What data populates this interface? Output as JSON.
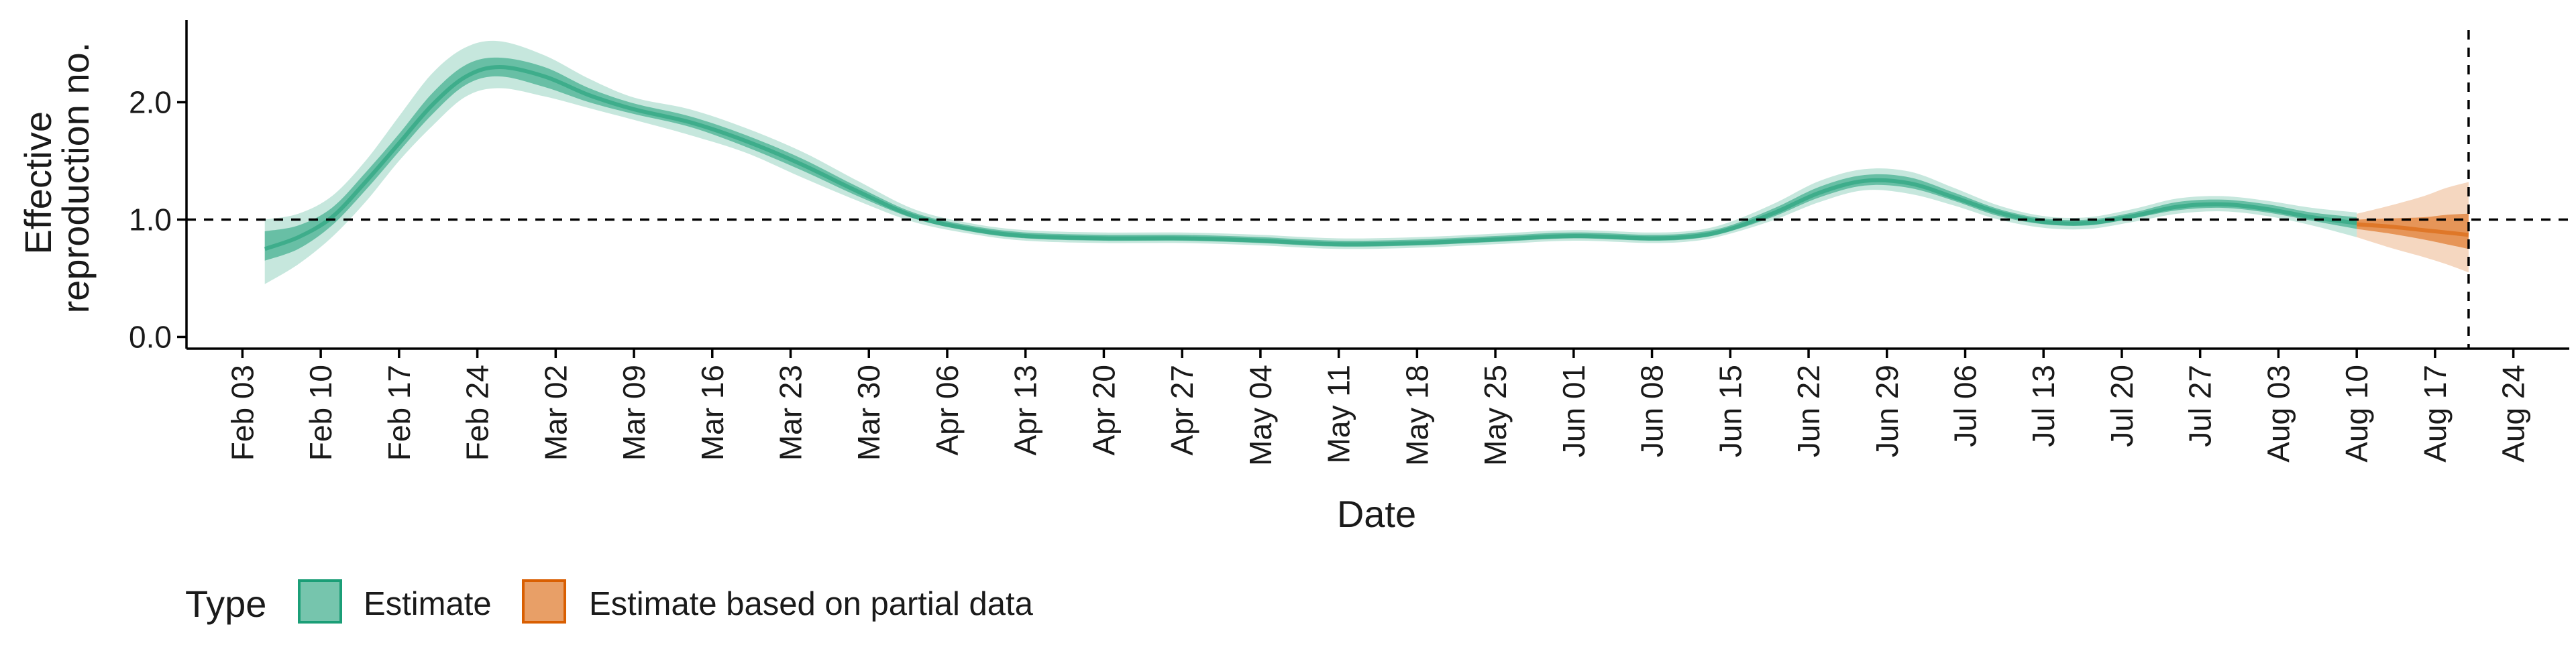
{
  "colors": {
    "estimate": "#1b9e77",
    "partial": "#d95f02",
    "ribbon_outer_opacity": 0.25,
    "ribbon_inner_opacity": 0.55,
    "axis": "#000000"
  },
  "chart_data": {
    "type": "area",
    "title": "",
    "xlabel": "Date",
    "ylabel": [
      "Effective",
      "reproduction no."
    ],
    "ylim": [
      -0.1,
      2.7
    ],
    "xlim": [
      "2020-01-29",
      "2020-08-29"
    ],
    "x_ticks": [
      "Feb 03",
      "Feb 10",
      "Feb 17",
      "Feb 24",
      "Mar 02",
      "Mar 09",
      "Mar 16",
      "Mar 23",
      "Mar 30",
      "Apr 06",
      "Apr 13",
      "Apr 20",
      "Apr 27",
      "May 04",
      "May 11",
      "May 18",
      "May 25",
      "Jun 01",
      "Jun 08",
      "Jun 15",
      "Jun 22",
      "Jun 29",
      "Jul 06",
      "Jul 13",
      "Jul 20",
      "Jul 27",
      "Aug 03",
      "Aug 10",
      "Aug 17",
      "Aug 24"
    ],
    "x_tick_dates": [
      "2020-02-03",
      "2020-02-10",
      "2020-02-17",
      "2020-02-24",
      "2020-03-02",
      "2020-03-09",
      "2020-03-16",
      "2020-03-23",
      "2020-03-30",
      "2020-04-06",
      "2020-04-13",
      "2020-04-20",
      "2020-04-27",
      "2020-05-04",
      "2020-05-11",
      "2020-05-18",
      "2020-05-25",
      "2020-06-01",
      "2020-06-08",
      "2020-06-15",
      "2020-06-22",
      "2020-06-29",
      "2020-07-06",
      "2020-07-13",
      "2020-07-20",
      "2020-07-27",
      "2020-08-03",
      "2020-08-10",
      "2020-08-17",
      "2020-08-24"
    ],
    "y_ticks": [
      0.0,
      1.0,
      2.0
    ],
    "y_tick_labels": [
      "0.0",
      "1.0",
      "2.0"
    ],
    "reference_lines": {
      "horizontal_y": 1.0,
      "vertical_x": "2020-08-20"
    },
    "grid": false,
    "legend": {
      "title": "Type",
      "position": "bottom-left",
      "entries": [
        "Estimate",
        "Estimate based on partial data"
      ]
    },
    "series": [
      {
        "name": "Estimate",
        "color_key": "estimate",
        "x": [
          "2020-02-05",
          "2020-02-08",
          "2020-02-11",
          "2020-02-14",
          "2020-02-17",
          "2020-02-20",
          "2020-02-23",
          "2020-02-26",
          "2020-03-01",
          "2020-03-05",
          "2020-03-09",
          "2020-03-14",
          "2020-03-19",
          "2020-03-24",
          "2020-03-29",
          "2020-04-03",
          "2020-04-08",
          "2020-04-13",
          "2020-04-20",
          "2020-04-27",
          "2020-05-04",
          "2020-05-11",
          "2020-05-18",
          "2020-05-25",
          "2020-06-01",
          "2020-06-08",
          "2020-06-12",
          "2020-06-15",
          "2020-06-19",
          "2020-06-23",
          "2020-06-27",
          "2020-07-01",
          "2020-07-05",
          "2020-07-09",
          "2020-07-13",
          "2020-07-17",
          "2020-07-21",
          "2020-07-25",
          "2020-07-29",
          "2020-08-02",
          "2020-08-06",
          "2020-08-10"
        ],
        "lower_outer": [
          0.45,
          0.62,
          0.85,
          1.15,
          1.5,
          1.8,
          2.05,
          2.12,
          2.05,
          1.95,
          1.85,
          1.72,
          1.57,
          1.36,
          1.16,
          0.98,
          0.88,
          0.82,
          0.8,
          0.8,
          0.78,
          0.75,
          0.76,
          0.79,
          0.82,
          0.8,
          0.82,
          0.88,
          1.0,
          1.15,
          1.25,
          1.22,
          1.12,
          1.0,
          0.93,
          0.92,
          0.98,
          1.05,
          1.07,
          1.03,
          0.95,
          0.85
        ],
        "lower_inner": [
          0.65,
          0.75,
          0.95,
          1.25,
          1.58,
          1.9,
          2.15,
          2.22,
          2.13,
          2.0,
          1.9,
          1.79,
          1.62,
          1.42,
          1.2,
          1.01,
          0.9,
          0.84,
          0.82,
          0.82,
          0.8,
          0.77,
          0.78,
          0.81,
          0.84,
          0.82,
          0.84,
          0.9,
          1.03,
          1.19,
          1.29,
          1.27,
          1.16,
          1.03,
          0.96,
          0.95,
          1.01,
          1.08,
          1.1,
          1.06,
          0.99,
          0.92
        ],
        "median": [
          0.75,
          0.85,
          1.02,
          1.32,
          1.65,
          1.98,
          2.22,
          2.3,
          2.22,
          2.06,
          1.94,
          1.83,
          1.67,
          1.47,
          1.24,
          1.03,
          0.92,
          0.86,
          0.84,
          0.84,
          0.82,
          0.79,
          0.8,
          0.83,
          0.86,
          0.84,
          0.86,
          0.92,
          1.06,
          1.23,
          1.33,
          1.31,
          1.19,
          1.06,
          0.98,
          0.97,
          1.03,
          1.11,
          1.13,
          1.09,
          1.02,
          0.97
        ],
        "upper_inner": [
          0.9,
          0.95,
          1.1,
          1.4,
          1.73,
          2.08,
          2.32,
          2.38,
          2.3,
          2.12,
          1.99,
          1.88,
          1.72,
          1.52,
          1.28,
          1.06,
          0.95,
          0.89,
          0.87,
          0.87,
          0.85,
          0.82,
          0.83,
          0.86,
          0.89,
          0.87,
          0.89,
          0.95,
          1.1,
          1.28,
          1.38,
          1.36,
          1.23,
          1.09,
          1.01,
          1.0,
          1.06,
          1.15,
          1.17,
          1.13,
          1.06,
          1.02
        ],
        "upper_outer": [
          1.0,
          1.05,
          1.2,
          1.5,
          1.88,
          2.25,
          2.47,
          2.52,
          2.4,
          2.2,
          2.04,
          1.94,
          1.78,
          1.58,
          1.33,
          1.09,
          0.97,
          0.91,
          0.89,
          0.89,
          0.87,
          0.84,
          0.85,
          0.88,
          0.91,
          0.89,
          0.91,
          0.98,
          1.14,
          1.33,
          1.43,
          1.41,
          1.27,
          1.12,
          1.03,
          1.02,
          1.09,
          1.18,
          1.2,
          1.16,
          1.1,
          1.06
        ]
      },
      {
        "name": "Estimate based on partial data",
        "color_key": "partial",
        "x": [
          "2020-08-10",
          "2020-08-13",
          "2020-08-16",
          "2020-08-18",
          "2020-08-20"
        ],
        "lower_outer": [
          0.85,
          0.76,
          0.68,
          0.62,
          0.55
        ],
        "lower_inner": [
          0.92,
          0.88,
          0.83,
          0.79,
          0.75
        ],
        "median": [
          0.96,
          0.94,
          0.91,
          0.89,
          0.87
        ],
        "upper_inner": [
          1.0,
          1.01,
          1.02,
          1.04,
          1.05
        ],
        "upper_outer": [
          1.05,
          1.12,
          1.2,
          1.27,
          1.32
        ]
      }
    ]
  }
}
